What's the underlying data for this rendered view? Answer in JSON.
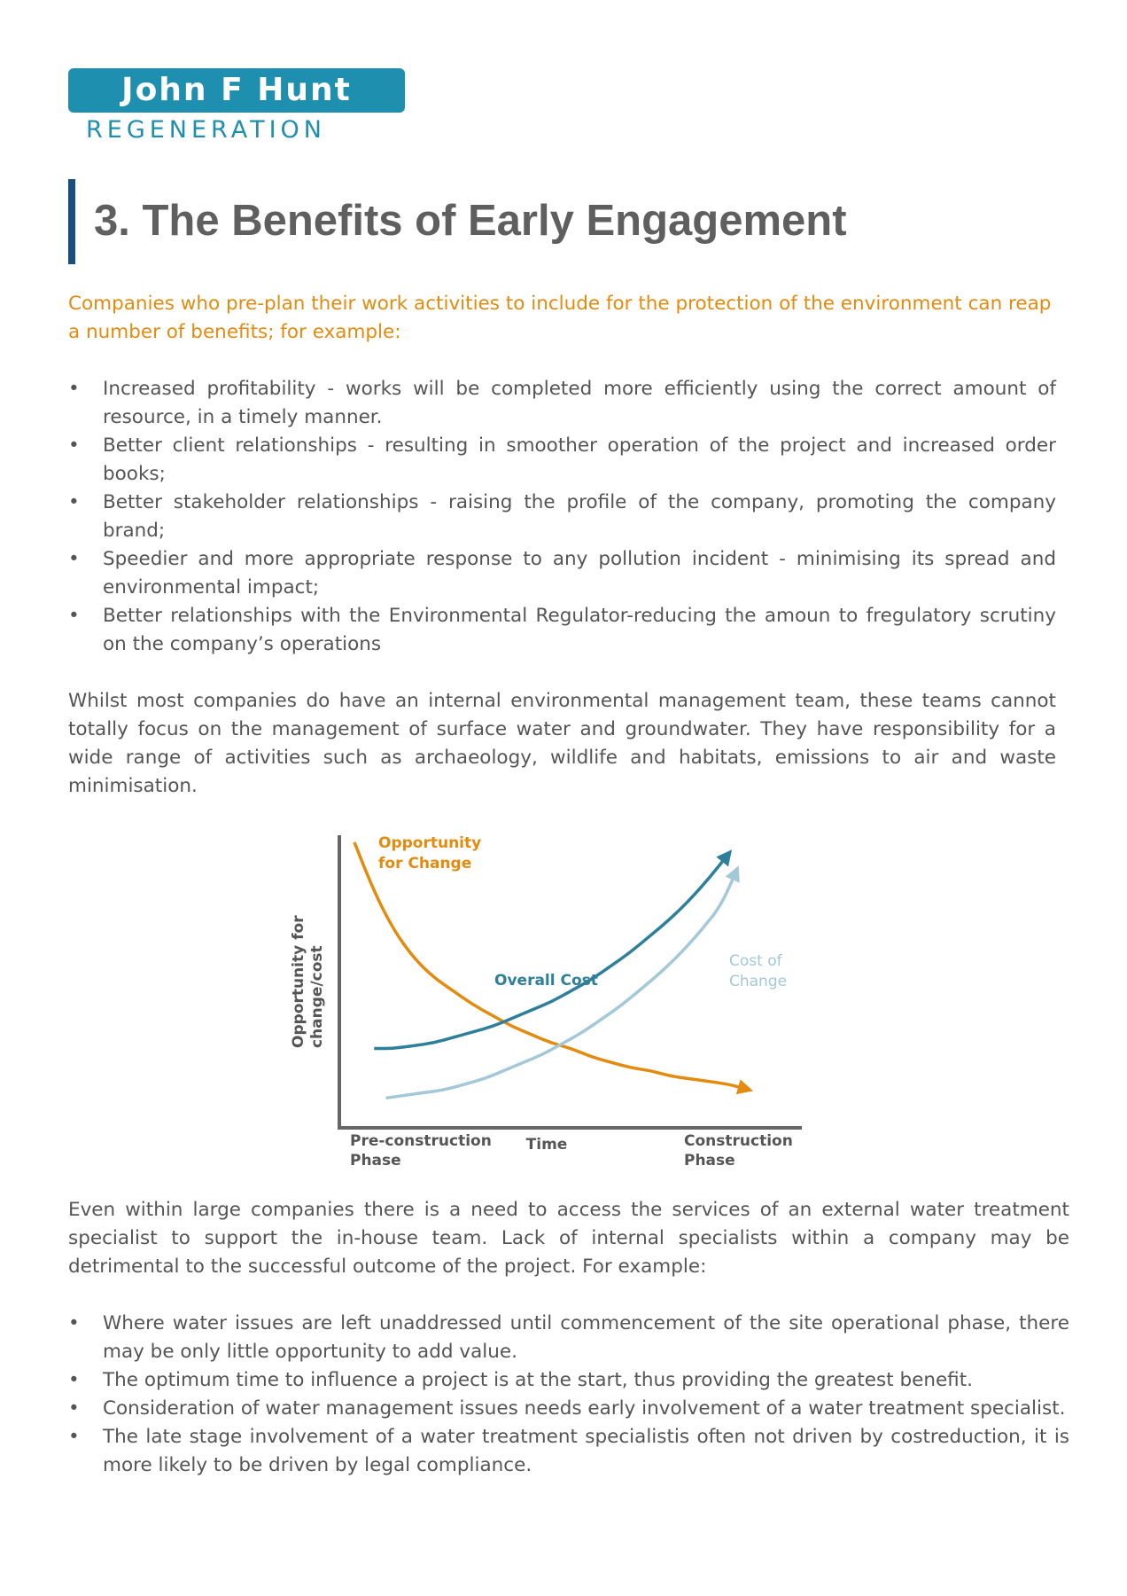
{
  "logo": {
    "brand": "John F Hunt",
    "tagline": "REGENERATION",
    "color": "#1f8fb0"
  },
  "title": "3. The Benefits of Early Engagement",
  "intro": "Companies who pre-plan their work activities to include for the protection of the environment can reap a number of benefits; for example:",
  "benefits": [
    "Increased profitability - works will be completed more efficiently using the correct amount of resource, in a timely manner.",
    "Better client relationships - resulting in smoother operation of the project and increased order books;",
    "Better stakeholder relationships - raising the profile of the company, promoting the company brand;",
    "Speedier and more appropriate response to any pollution incident - minimising its spread and environmental impact;",
    "Better relationships with the Environmental Regulator-reducing the amoun to fregulatory scrutiny on the company’s operations"
  ],
  "paragraph1": "Whilst most companies do have an internal environmental management team, these teams cannot totally focus on the management of surface water and groundwater. They have responsibility for a wide range of activities such as archaeology, wildlife and habitats, emissions to air and waste minimisation.",
  "paragraph2": "Even within large companies there is a need to access the services of an external water treatment specialist to support the in-house team. Lack of internal specialists within a company may be detrimental to the successful outcome of the project. For example:",
  "examples": [
    "Where water issues are left unaddressed until commencement of the site operational phase, there may be only little opportunity to add value.",
    "The optimum time to influence a project is at the start, thus providing the greatest benefit.",
    "Consideration of water management issues needs early involvement of a water treatment specialist.",
    "The late stage involvement of a water treatment specialistis often not driven by costreduction, it is more likely to be driven by legal compliance."
  ],
  "colors": {
    "accent_orange": "#e38b0f",
    "title_bar": "#1a4f86",
    "overall_cost": "#2e7f9a",
    "cost_of_change": "#a3c8d8",
    "axis": "#666666"
  },
  "chart_data": {
    "type": "line",
    "xlabel": "Time",
    "ylabel_lines": [
      "Opportunity for",
      "change/cost"
    ],
    "x_tick_labels": [
      {
        "lines": [
          "Pre-construction",
          "Phase"
        ]
      },
      {
        "lines": [
          "Construction",
          "Phase"
        ]
      }
    ],
    "axis_ticks_numeric": false,
    "grid": false,
    "series": [
      {
        "name_lines": [
          "Opportunity",
          "for Change"
        ],
        "color": "#e38b0f",
        "x": [
          0.0,
          0.05,
          0.1,
          0.15,
          0.2,
          0.25,
          0.3,
          0.35,
          0.4,
          0.45,
          0.5,
          0.55,
          0.6,
          0.65,
          0.7,
          0.75,
          0.8,
          0.85,
          0.9,
          0.95,
          1.0
        ],
        "values": [
          1.0,
          0.82,
          0.68,
          0.58,
          0.51,
          0.46,
          0.41,
          0.37,
          0.33,
          0.3,
          0.27,
          0.25,
          0.22,
          0.2,
          0.18,
          0.17,
          0.15,
          0.14,
          0.13,
          0.12,
          0.1
        ]
      },
      {
        "name_lines": [
          "Overall Cost"
        ],
        "color": "#2e7f9a",
        "x": [
          0.05,
          0.1,
          0.15,
          0.2,
          0.25,
          0.3,
          0.35,
          0.4,
          0.45,
          0.5,
          0.55,
          0.6,
          0.65,
          0.7,
          0.75,
          0.8,
          0.85,
          0.9,
          0.95
        ],
        "values": [
          0.25,
          0.25,
          0.26,
          0.27,
          0.29,
          0.31,
          0.33,
          0.36,
          0.39,
          0.42,
          0.46,
          0.5,
          0.55,
          0.6,
          0.66,
          0.72,
          0.79,
          0.87,
          0.96
        ]
      },
      {
        "name_lines": [
          "Cost of",
          "Change"
        ],
        "color": "#a3c8d8",
        "x": [
          0.08,
          0.13,
          0.18,
          0.23,
          0.28,
          0.33,
          0.38,
          0.43,
          0.48,
          0.53,
          0.58,
          0.63,
          0.68,
          0.73,
          0.78,
          0.83,
          0.88,
          0.93,
          0.97
        ],
        "values": [
          0.07,
          0.08,
          0.09,
          0.1,
          0.12,
          0.14,
          0.17,
          0.2,
          0.23,
          0.27,
          0.31,
          0.36,
          0.41,
          0.47,
          0.53,
          0.6,
          0.68,
          0.77,
          0.9
        ]
      }
    ]
  }
}
